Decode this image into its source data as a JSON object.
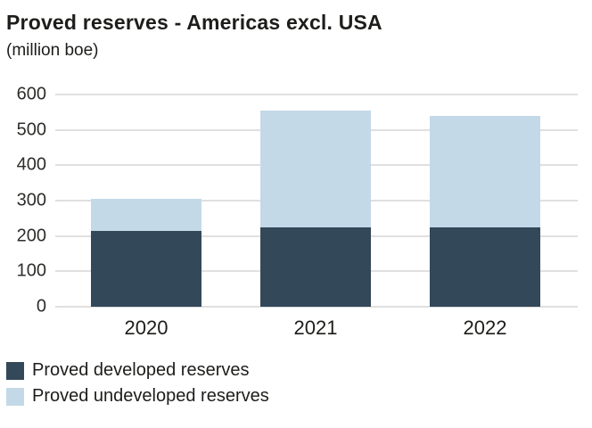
{
  "title": "Proved reserves - Americas excl. USA",
  "subtitle": "(million boe)",
  "colors": {
    "developed": "#33495A",
    "undeveloped": "#C3D9E8",
    "gridline": "#E0E0E0",
    "text": "#1D1D1B"
  },
  "chart_data": {
    "type": "bar",
    "stacked": true,
    "title": "Proved reserves - Americas excl. USA",
    "unit_label": "(million boe)",
    "categories": [
      "2020",
      "2021",
      "2022"
    ],
    "series": [
      {
        "name": "Proved developed reserves",
        "color": "#33495A",
        "values": [
          215,
          225,
          225
        ]
      },
      {
        "name": "Proved undeveloped reserves",
        "color": "#C3D9E8",
        "values": [
          90,
          330,
          315
        ]
      }
    ],
    "totals": [
      305,
      555,
      540
    ],
    "ylim": [
      0,
      600
    ],
    "yticks": [
      0,
      100,
      200,
      300,
      400,
      500,
      600
    ],
    "grid": true,
    "legend_position": "bottom-left"
  }
}
